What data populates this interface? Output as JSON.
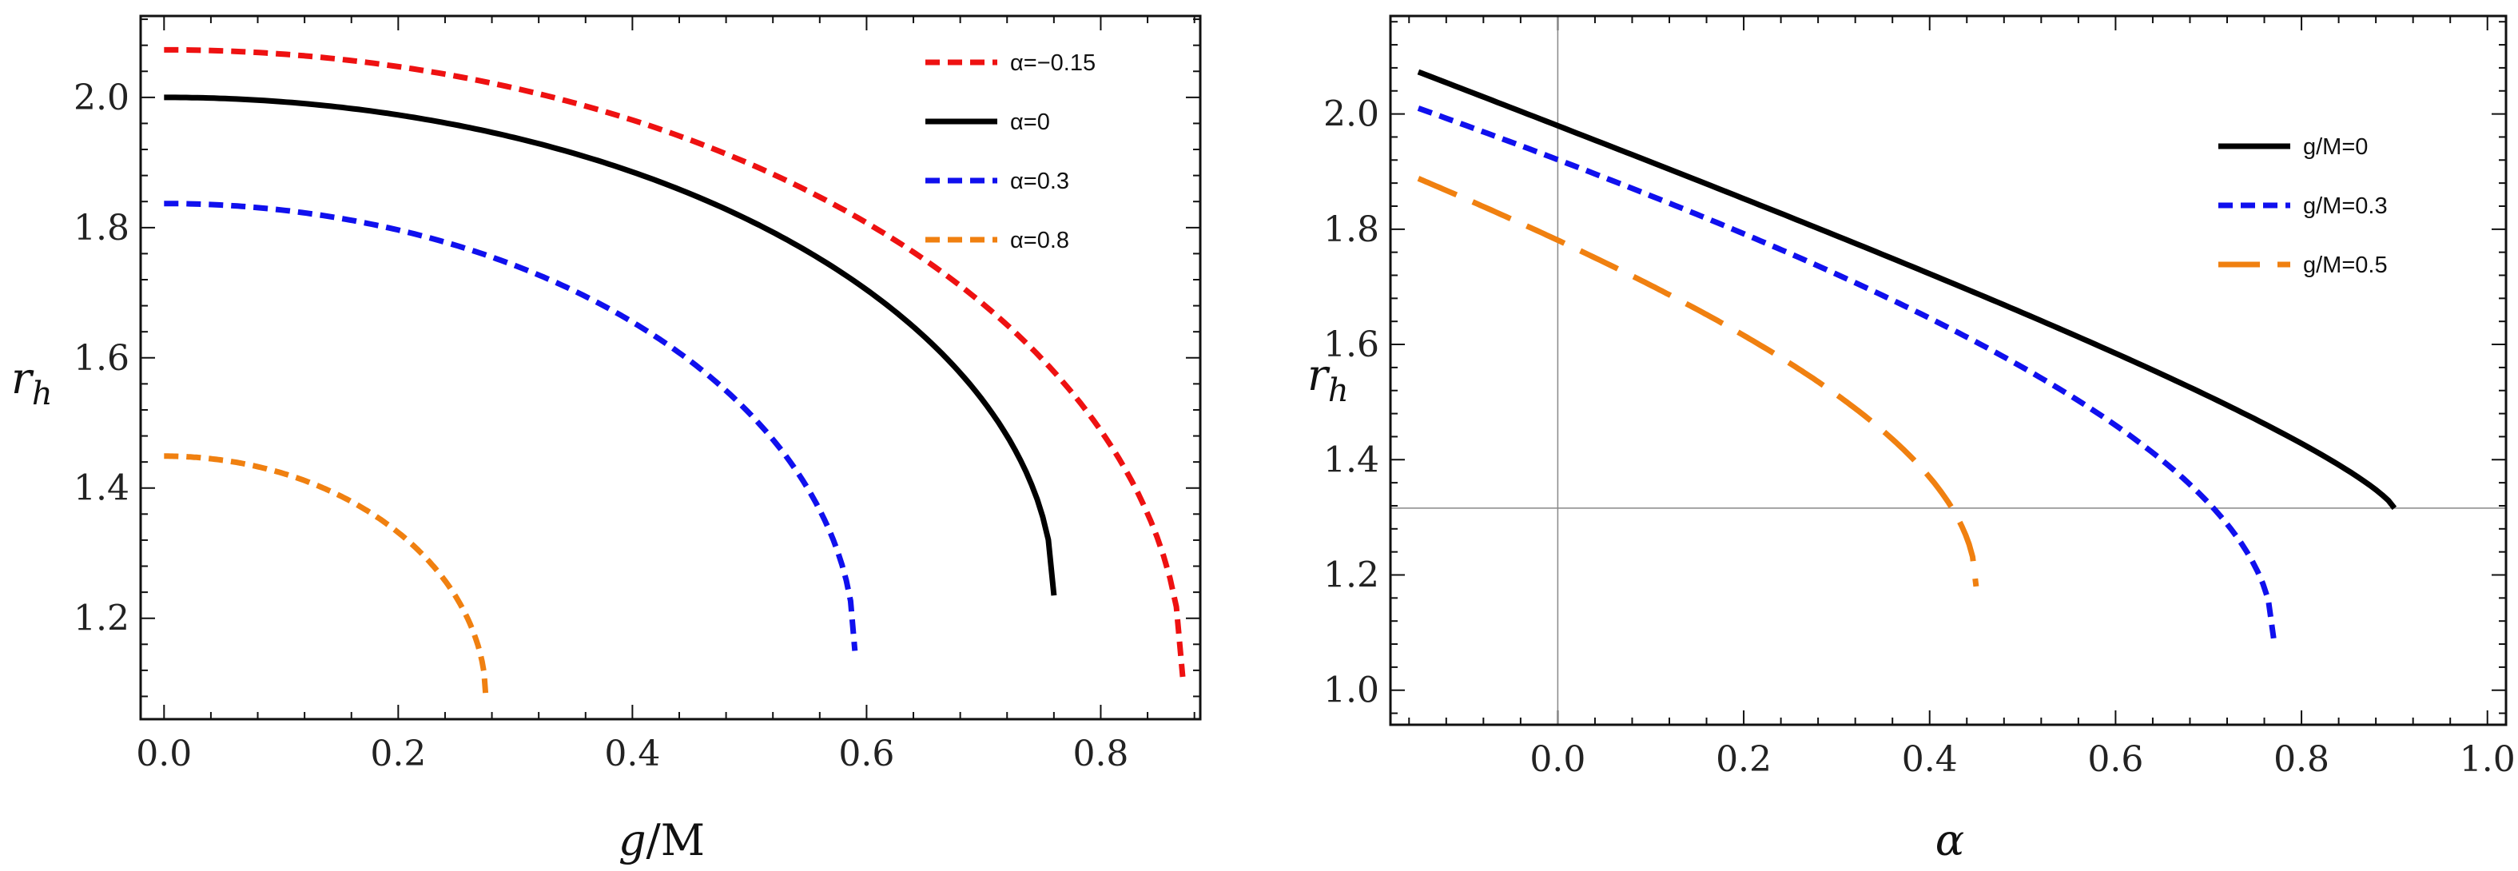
{
  "chart_data": [
    {
      "type": "line",
      "name": "rh-vs-gM",
      "title": "",
      "xlabel_symbol": "g",
      "xlabel_unit": "/M",
      "ylabel_main": "r",
      "ylabel_sub": "h",
      "xlim": [
        -0.02,
        0.885
      ],
      "ylim": [
        1.045,
        2.125
      ],
      "xticks": [
        0.0,
        0.2,
        0.4,
        0.6,
        0.8
      ],
      "yticks": [
        1.2,
        1.4,
        1.6,
        1.8,
        2.0
      ],
      "xtick_labels": [
        "0.0",
        "0.2",
        "0.4",
        "0.6",
        "0.8"
      ],
      "ytick_labels": [
        "1.2",
        "1.4",
        "1.6",
        "1.8",
        "2.0"
      ],
      "legend_position": "top-right",
      "series": [
        {
          "name": "α=−0.15",
          "color": "#ee1111",
          "dash": "dashed",
          "alpha": -0.15,
          "x_end": 0.87,
          "r0": 2.073,
          "r_end": 1.11
        },
        {
          "name": "α=0",
          "color": "#000000",
          "dash": "solid",
          "alpha": 0,
          "x_end": 0.76,
          "r0": 2.0,
          "r_end": 1.235
        },
        {
          "name": "α=0.3",
          "color": "#1010ee",
          "dash": "dashed",
          "alpha": 0.3,
          "x_end": 0.59,
          "r0": 1.837,
          "r_end": 1.15
        },
        {
          "name": "α=0.8",
          "color": "#f08010",
          "dash": "dashed",
          "alpha": 0.8,
          "x_end": 0.275,
          "r0": 1.449,
          "r_end": 1.075
        }
      ]
    },
    {
      "type": "line",
      "name": "rh-vs-alpha",
      "title": "",
      "xlabel_symbol": "α",
      "ylabel_main": "r",
      "ylabel_sub": "h",
      "xlim": [
        -0.18,
        1.02
      ],
      "ylim": [
        0.94,
        2.17
      ],
      "xticks": [
        0.0,
        0.2,
        0.4,
        0.6,
        0.8,
        1.0
      ],
      "yticks": [
        1.0,
        1.2,
        1.4,
        1.6,
        1.8,
        2.0
      ],
      "xtick_labels": [
        "0.0",
        "0.2",
        "0.4",
        "0.6",
        "0.8",
        "1.0"
      ],
      "ytick_labels": [
        "1.0",
        "1.2",
        "1.4",
        "1.6",
        "1.8",
        "2.0"
      ],
      "reference_lines": {
        "x": 0,
        "y": 1.316
      },
      "legend_position": "top-right",
      "series": [
        {
          "name": "g/M=0",
          "color": "#000000",
          "dash": "solid",
          "gM": 0,
          "x_start": -0.15,
          "x_end": 0.9,
          "r_start": 2.073,
          "r_end": 1.316
        },
        {
          "name": "g/M=0.3",
          "color": "#1010ee",
          "dash": "dashed",
          "gM": 0.3,
          "x_start": -0.15,
          "x_end": 0.77,
          "r_start": 2.01,
          "r_end": 1.09
        },
        {
          "name": "g/M=0.5",
          "color": "#f08010",
          "dash": "long-dashed",
          "gM": 0.5,
          "x_start": -0.15,
          "x_end": 0.45,
          "r_start": 1.888,
          "r_end": 1.18
        }
      ]
    }
  ]
}
